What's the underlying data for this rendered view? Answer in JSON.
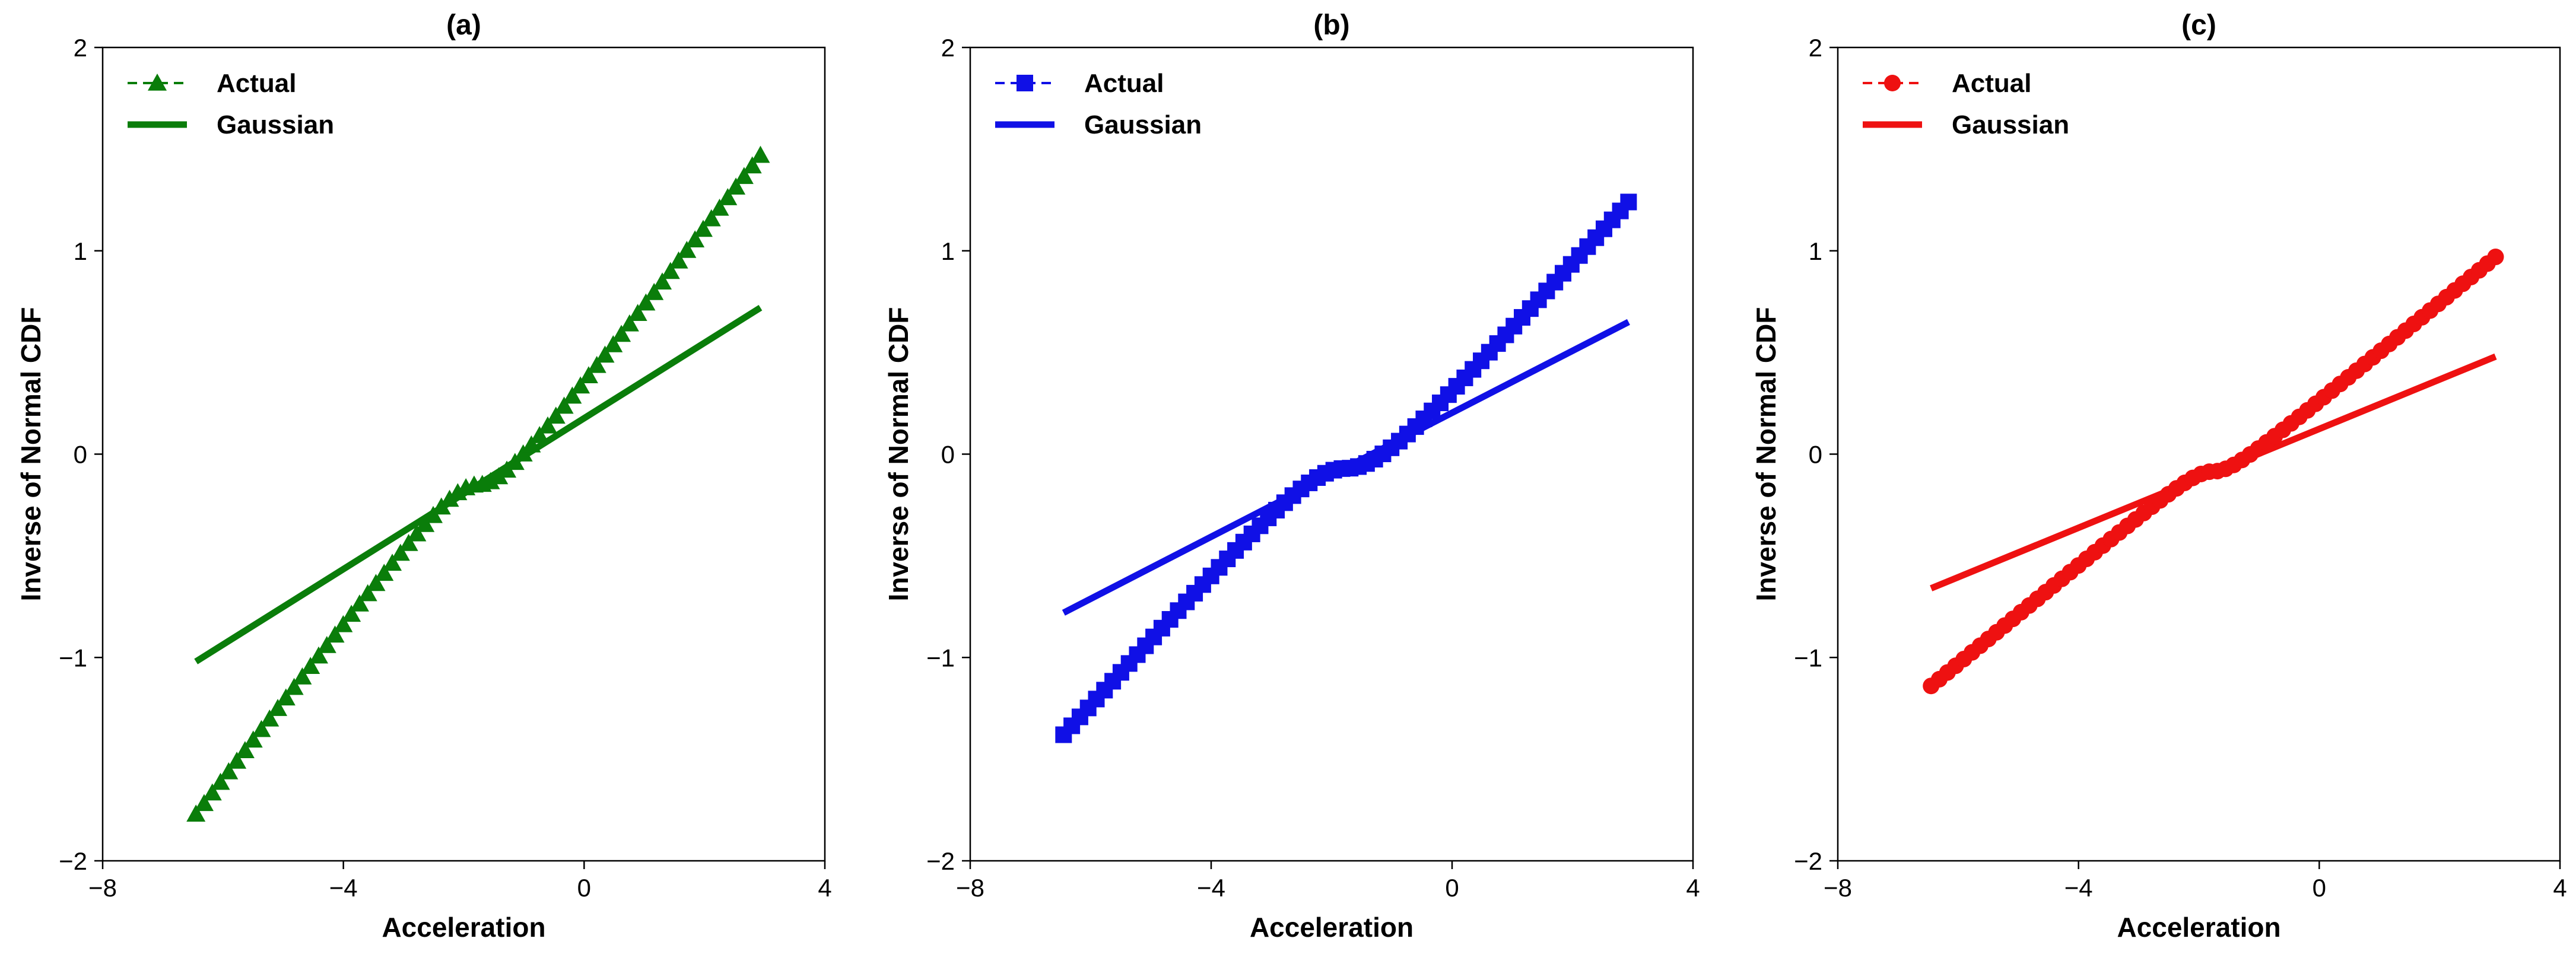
{
  "chart_data": [
    {
      "type": "line",
      "panel": "(a)",
      "title": "(a)",
      "xlabel": "Acceleration",
      "ylabel": "Inverse of Normal CDF",
      "xlim": [
        -8,
        4
      ],
      "ylim": [
        -2,
        2
      ],
      "xticks": [
        -8,
        -4,
        0,
        4
      ],
      "xtick_labels": [
        "−8",
        "−4",
        "0",
        "4"
      ],
      "yticks": [
        -2,
        -1,
        0,
        1,
        2
      ],
      "ytick_labels": [
        "−2",
        "−1",
        "0",
        "1",
        "2"
      ],
      "color": "#0a7d0a",
      "marker": "triangle",
      "legend_position": "top-left",
      "series": [
        {
          "name": "Actual",
          "style": "dashed-marker",
          "amp": 0.66,
          "p": 0.11,
          "p2": 0.11,
          "x_end": [
            -6.45,
            2.93
          ],
          "y_end": [
            -1.77,
            1.47
          ]
        },
        {
          "name": "Gaussian",
          "style": "solid",
          "x": [
            -6.45,
            2.93
          ],
          "y": [
            -1.02,
            0.72
          ]
        }
      ]
    },
    {
      "type": "line",
      "panel": "(b)",
      "title": "(b)",
      "xlabel": "Acceleration",
      "ylabel": "Inverse of Normal CDF",
      "xlim": [
        -8,
        4
      ],
      "ylim": [
        -2,
        2
      ],
      "xticks": [
        -8,
        -4,
        0,
        4
      ],
      "xtick_labels": [
        "−8",
        "−4",
        "0",
        "4"
      ],
      "yticks": [
        -2,
        -1,
        0,
        1,
        2
      ],
      "ytick_labels": [
        "−2",
        "−1",
        "0",
        "1",
        "2"
      ],
      "color": "#1010e6",
      "marker": "square",
      "legend_position": "top-left",
      "series": [
        {
          "name": "Actual",
          "style": "dashed-marker",
          "amp": 0.44,
          "p": 0.16,
          "p2": 0.16,
          "x_end": [
            -6.45,
            2.93
          ],
          "y_end": [
            -1.38,
            1.24
          ]
        },
        {
          "name": "Gaussian",
          "style": "solid",
          "x": [
            -6.45,
            2.93
          ],
          "y": [
            -0.78,
            0.65
          ]
        }
      ]
    },
    {
      "type": "line",
      "panel": "(c)",
      "title": "(c)",
      "xlabel": "Acceleration",
      "ylabel": "Inverse of Normal CDF",
      "xlim": [
        -8,
        4
      ],
      "ylim": [
        -2,
        2
      ],
      "xticks": [
        -8,
        -4,
        0,
        4
      ],
      "xtick_labels": [
        "−8",
        "−4",
        "0",
        "4"
      ],
      "yticks": [
        -2,
        -1,
        0,
        1,
        2
      ],
      "ytick_labels": [
        "−2",
        "−1",
        "0",
        "1",
        "2"
      ],
      "color": "#ee1111",
      "marker": "circle",
      "legend_position": "top-left",
      "series": [
        {
          "name": "Actual",
          "style": "dashed-marker",
          "amp": 0.36,
          "p": 0.08,
          "p2": 0.08,
          "x_end": [
            -6.45,
            2.93
          ],
          "y_end": [
            -1.14,
            0.97
          ]
        },
        {
          "name": "Gaussian",
          "style": "solid",
          "x": [
            -6.45,
            2.93
          ],
          "y": [
            -0.66,
            0.48
          ]
        }
      ]
    }
  ]
}
